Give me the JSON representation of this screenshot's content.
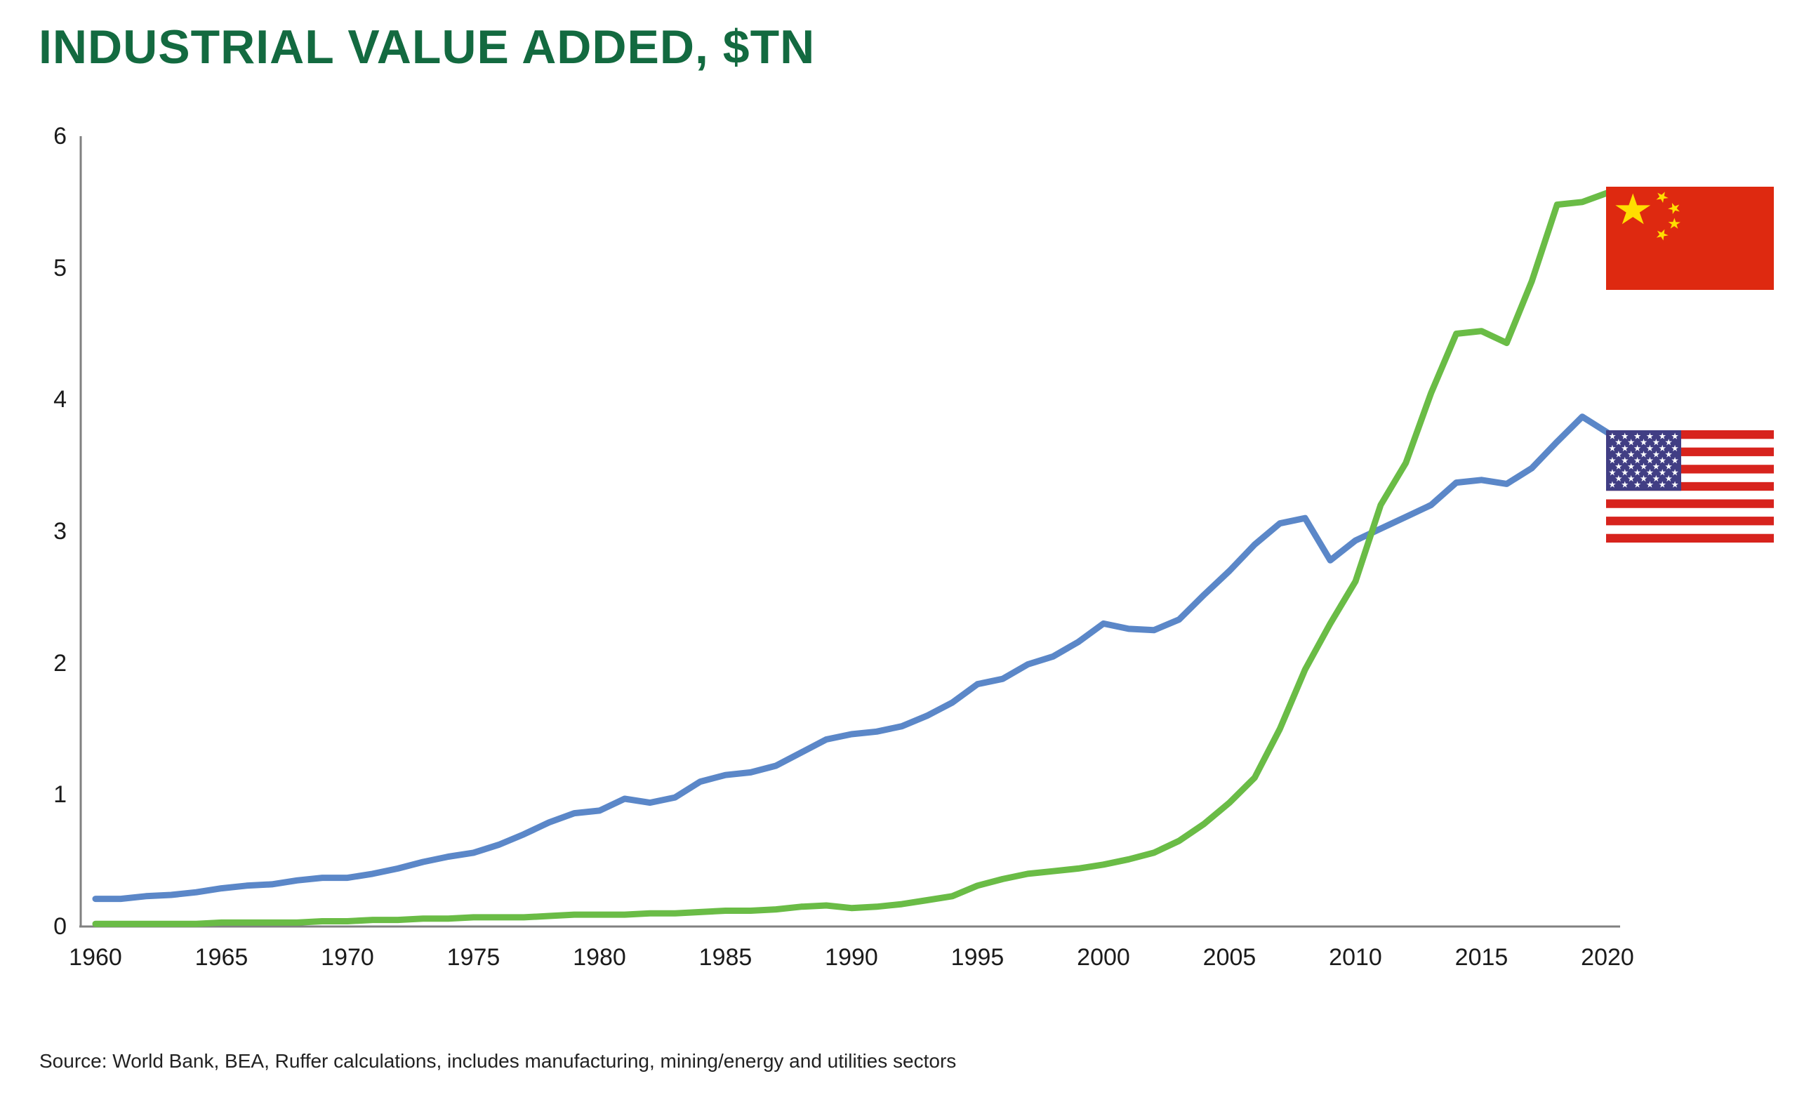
{
  "title": "INDUSTRIAL VALUE ADDED, $TN",
  "source": "Source: World Bank, BEA, Ruffer calculations, includes manufacturing, mining/energy and utilities sectors",
  "colors": {
    "title_green": "#136a40",
    "china_line": "#6abc46",
    "us_line": "#5b87c8",
    "axis": "#808080",
    "tick_text": "#1b1b1b",
    "china_flag_red": "#de2910",
    "china_flag_yellow": "#ffde00",
    "us_flag_red": "#d7231d",
    "us_flag_blue": "#413e84"
  },
  "legend": {
    "top_marker": "china-flag-icon",
    "bottom_marker": "us-flag-icon"
  },
  "chart_data": {
    "type": "line",
    "title": "INDUSTRIAL VALUE ADDED, $TN",
    "xlabel": "",
    "ylabel": "",
    "xlim": [
      1960,
      2020
    ],
    "ylim": [
      0,
      6
    ],
    "grid": false,
    "legend_position": "right-of-line-ends-as-flags",
    "x_ticks": [
      1960,
      1965,
      1970,
      1975,
      1980,
      1985,
      1990,
      1995,
      2000,
      2005,
      2010,
      2015,
      2020
    ],
    "y_ticks": [
      0,
      1,
      2,
      3,
      4,
      5,
      6
    ],
    "x": [
      1960,
      1961,
      1962,
      1963,
      1964,
      1965,
      1966,
      1967,
      1968,
      1969,
      1970,
      1971,
      1972,
      1973,
      1974,
      1975,
      1976,
      1977,
      1978,
      1979,
      1980,
      1981,
      1982,
      1983,
      1984,
      1985,
      1986,
      1987,
      1988,
      1989,
      1990,
      1991,
      1992,
      1993,
      1994,
      1995,
      1996,
      1997,
      1998,
      1999,
      2000,
      2001,
      2002,
      2003,
      2004,
      2005,
      2006,
      2007,
      2008,
      2009,
      2010,
      2011,
      2012,
      2013,
      2014,
      2015,
      2016,
      2017,
      2018,
      2019,
      2020
    ],
    "series": [
      {
        "name": "United States",
        "id": "us",
        "color": "#5b87c8",
        "values": [
          0.21,
          0.21,
          0.23,
          0.24,
          0.26,
          0.29,
          0.31,
          0.32,
          0.35,
          0.37,
          0.37,
          0.4,
          0.44,
          0.49,
          0.53,
          0.56,
          0.62,
          0.7,
          0.79,
          0.86,
          0.88,
          0.97,
          0.94,
          0.98,
          1.1,
          1.15,
          1.17,
          1.22,
          1.32,
          1.42,
          1.46,
          1.48,
          1.52,
          1.6,
          1.7,
          1.84,
          1.88,
          1.99,
          2.05,
          2.16,
          2.3,
          2.26,
          2.25,
          2.33,
          2.52,
          2.7,
          2.9,
          3.06,
          3.1,
          2.78,
          2.93,
          3.02,
          3.11,
          3.2,
          3.37,
          3.39,
          3.36,
          3.48,
          3.68,
          3.87,
          3.75
        ]
      },
      {
        "name": "China",
        "id": "china",
        "color": "#6abc46",
        "values": [
          0.02,
          0.02,
          0.02,
          0.02,
          0.02,
          0.03,
          0.03,
          0.03,
          0.03,
          0.04,
          0.04,
          0.05,
          0.05,
          0.06,
          0.06,
          0.07,
          0.07,
          0.07,
          0.08,
          0.09,
          0.09,
          0.09,
          0.1,
          0.1,
          0.11,
          0.12,
          0.12,
          0.13,
          0.15,
          0.16,
          0.14,
          0.15,
          0.17,
          0.2,
          0.23,
          0.31,
          0.36,
          0.4,
          0.42,
          0.44,
          0.47,
          0.51,
          0.56,
          0.65,
          0.78,
          0.94,
          1.13,
          1.5,
          1.95,
          2.3,
          2.62,
          3.2,
          3.52,
          4.05,
          4.5,
          4.52,
          4.43,
          4.9,
          5.48,
          5.5,
          5.57
        ]
      }
    ]
  }
}
